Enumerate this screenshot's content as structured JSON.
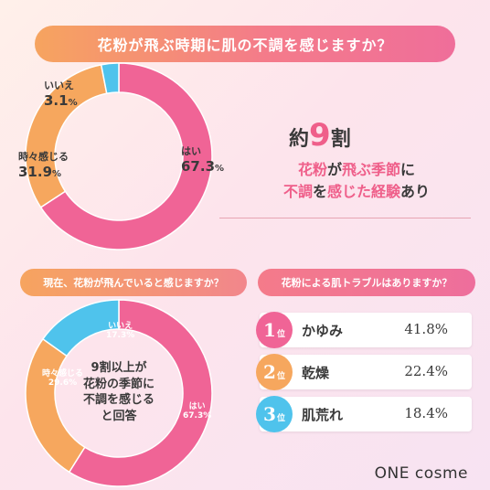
{
  "title": "花粉が飛ぶ時期に肌の不調を感じますか？",
  "chart_data": [
    {
      "type": "pie",
      "title": "花粉が飛ぶ時期に肌の不調を感じますか？",
      "categories": [
        "はい",
        "時々感じる",
        "いいえ"
      ],
      "values": [
        67.3,
        31.9,
        3.1
      ],
      "colors": [
        "#f06496",
        "#f6a75e",
        "#4fc3ec"
      ]
    },
    {
      "type": "pie",
      "title": "現在、花粉が飛んでいると感じますか？",
      "categories": [
        "はい",
        "時々感じる",
        "いいえ"
      ],
      "values": [
        67.3,
        29.6,
        17.3
      ],
      "colors": [
        "#f06496",
        "#f6a75e",
        "#4fc3ec"
      ]
    },
    {
      "type": "table",
      "title": "花粉による肌トラブルはありますか？",
      "rows": [
        {
          "rank": "1",
          "suffix": "位",
          "name": "かゆみ",
          "value": "41.8%"
        },
        {
          "rank": "2",
          "suffix": "位",
          "name": "乾燥",
          "value": "22.4%"
        },
        {
          "rank": "3",
          "suffix": "位",
          "name": "肌荒れ",
          "value": "18.4%"
        }
      ]
    }
  ],
  "donut1_labels": {
    "yes_label": "はい",
    "yes_value": "67.3",
    "yes_pct": "%",
    "sometimes_label": "時々感じる",
    "sometimes_value": "31.9",
    "sometimes_pct": "%",
    "no_label": "いいえ",
    "no_value": "3.1",
    "no_pct": "%"
  },
  "callout": {
    "prefix": "約",
    "number": "9",
    "suffix": "割",
    "line1_a": "花粉",
    "line1_b": "が",
    "line1_c": "飛ぶ季節",
    "line1_d": "に",
    "line2_a": "不調",
    "line2_b": "を",
    "line2_c": "感じた経験",
    "line2_d": "あり"
  },
  "left_question": "現在、花粉が飛んでいると感じますか？",
  "right_question": "花粉による肌トラブルはありますか？",
  "donut2_labels": {
    "yes_label": "はい",
    "yes_value": "67.3%",
    "sometimes_label": "時々感じる",
    "sometimes_value": "29.6%",
    "no_label": "いいえ",
    "no_value": "17.3%"
  },
  "donut2_center": {
    "line1": "9割以上が",
    "line2": "花粉の季節に",
    "line3": "不調を感じる",
    "line4": "と回答"
  },
  "rank_colors": [
    "#f06496",
    "#f6a75e",
    "#4fc3ec"
  ],
  "logo": "ONE cosme"
}
